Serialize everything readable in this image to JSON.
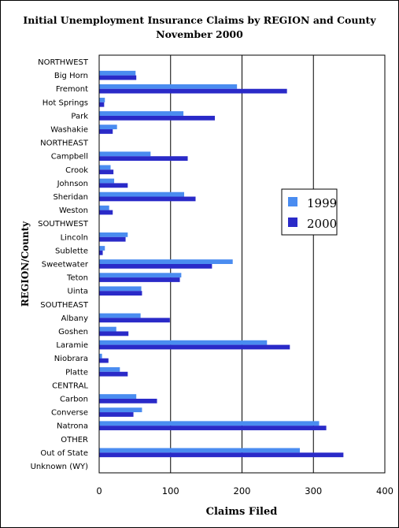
{
  "chart_data": {
    "type": "bar",
    "orientation": "horizontal",
    "title": "Initial Unemployment Insurance Claims by REGION and County",
    "subtitle": "November 2000",
    "xlabel": "Claims Filed",
    "ylabel": "REGION/County",
    "xlim": [
      0,
      400
    ],
    "xticks": [
      0,
      100,
      200,
      300,
      400
    ],
    "grid": true,
    "legend_position": "right",
    "categories": [
      "NORTHWEST",
      "Big Horn",
      "Fremont",
      "Hot Springs",
      "Park",
      "Washakie",
      "NORTHEAST",
      "Campbell",
      "Crook",
      "Johnson",
      "Sheridan",
      "Weston",
      "SOUTHWEST",
      "Lincoln",
      "Sublette",
      "Sweetwater",
      "Teton",
      "Uinta",
      "SOUTHEAST",
      "Albany",
      "Goshen",
      "Laramie",
      "Niobrara",
      "Platte",
      "CENTRAL",
      "Carbon",
      "Converse",
      "Natrona",
      "OTHER",
      "Out of State",
      "Unknown (WY)"
    ],
    "series": [
      {
        "name": "1999",
        "color": "#4a8cf0",
        "values": [
          0,
          51,
          193,
          8,
          118,
          25,
          0,
          72,
          16,
          21,
          119,
          14,
          0,
          40,
          8,
          187,
          115,
          59,
          0,
          58,
          24,
          235,
          4,
          29,
          0,
          52,
          60,
          308,
          0,
          281,
          0
        ]
      },
      {
        "name": "2000",
        "color": "#2a2ac8",
        "values": [
          0,
          52,
          263,
          7,
          162,
          19,
          0,
          124,
          20,
          40,
          135,
          19,
          0,
          37,
          5,
          158,
          113,
          60,
          0,
          99,
          41,
          267,
          13,
          40,
          0,
          81,
          48,
          318,
          0,
          342,
          0
        ]
      }
    ]
  }
}
